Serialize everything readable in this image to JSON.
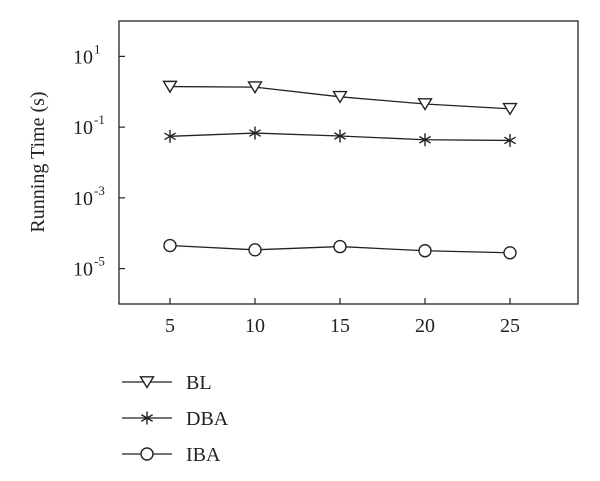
{
  "chart_data": {
    "type": "line",
    "title": "",
    "xlabel": "",
    "ylabel": "Running Time (s)",
    "yscale": "log",
    "x": [
      5,
      10,
      15,
      20,
      25
    ],
    "xlim": [
      2,
      29
    ],
    "xticks": [
      "5",
      "10",
      "15",
      "20",
      "25"
    ],
    "ylim": [
      1e-06,
      100
    ],
    "yticks": [
      {
        "base": "10",
        "exp": "1",
        "value": 10
      },
      {
        "base": "10",
        "exp": "-1",
        "value": 0.1
      },
      {
        "base": "10",
        "exp": "-3",
        "value": 0.001
      },
      {
        "base": "10",
        "exp": "-5",
        "value": 1e-05
      }
    ],
    "grid": false,
    "legend_position": "bottom-left",
    "series": [
      {
        "name": "BL",
        "marker": "triangle-down",
        "values": [
          1.4,
          1.35,
          0.72,
          0.45,
          0.33
        ]
      },
      {
        "name": "DBA",
        "marker": "asterisk",
        "values": [
          0.055,
          0.068,
          0.056,
          0.044,
          0.042
        ]
      },
      {
        "name": "IBA",
        "marker": "circle",
        "values": [
          4.5e-05,
          3.4e-05,
          4.2e-05,
          3.2e-05,
          2.8e-05
        ]
      }
    ],
    "line_color": "#222222"
  }
}
